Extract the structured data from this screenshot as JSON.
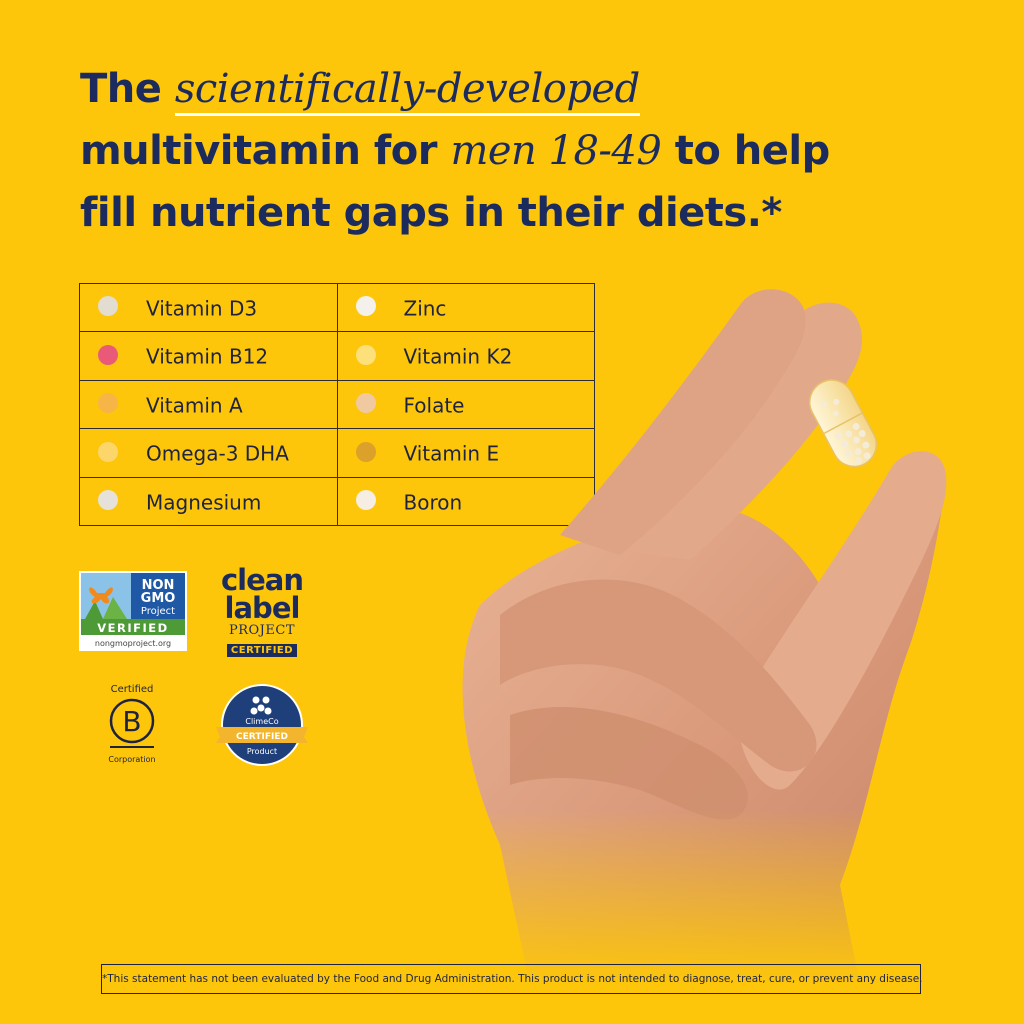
{
  "headline": {
    "line1_prefix": "The ",
    "line1_emph": "scientifically-developed",
    "line2_prefix": "multivitamin for ",
    "line2_emph": "men 18-49",
    "line2_suffix": " to help",
    "line3": "fill nutrient gaps in their diets.*"
  },
  "nutrients": [
    {
      "left": {
        "name": "Vitamin D3",
        "color": "#e3dcd0"
      },
      "right": {
        "name": "Zinc",
        "color": "#f4f1ec"
      }
    },
    {
      "left": {
        "name": "Vitamin B12",
        "color": "#e85a77"
      },
      "right": {
        "name": "Vitamin K2",
        "color": "#fde07a"
      }
    },
    {
      "left": {
        "name": "Vitamin A",
        "color": "#f7b547"
      },
      "right": {
        "name": "Folate",
        "color": "#f1c9a0"
      }
    },
    {
      "left": {
        "name": "Omega-3 DHA",
        "color": "#fcd66a"
      },
      "right": {
        "name": "Vitamin E",
        "color": "#dca12a"
      }
    },
    {
      "left": {
        "name": "Magnesium",
        "color": "#e7e2d9"
      },
      "right": {
        "name": "Boron",
        "color": "#f6eee2"
      }
    }
  ],
  "badges": {
    "nongmo": {
      "line1": "NON",
      "line2": "GMO",
      "line3": "Project",
      "verified": "VERIFIED",
      "url": "nongmoproject.org"
    },
    "clean": {
      "line1": "clean",
      "line2": "label",
      "line3": "PROJECT",
      "line4": "CERTIFIED"
    },
    "bcorp": {
      "top": "Certified",
      "letter": "B",
      "bottom": "Corporation"
    },
    "climeco": {
      "name": "ClimeCo",
      "certified": "CERTIFIED",
      "product": "Product"
    }
  },
  "disclaimer": "*This statement has not been evaluated by the Food and Drug Administration. This product is not intended to diagnose, treat, cure, or prevent any disease.",
  "colors": {
    "background": "#fdc60a",
    "navy": "#1c2b5e"
  }
}
